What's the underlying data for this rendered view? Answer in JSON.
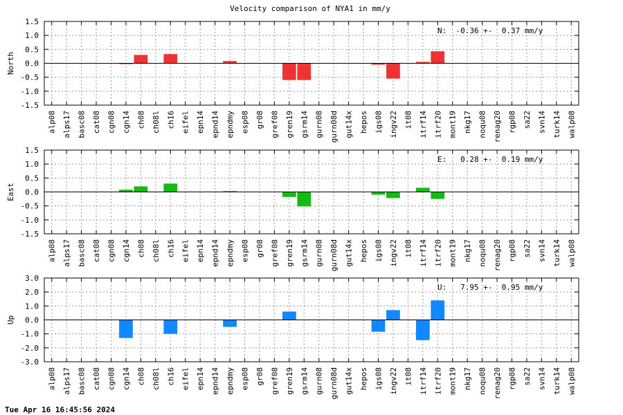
{
  "title": "Velocity comparison of NYA1 in mm/y",
  "timestamp": "Tue Apr 16 16:45:56 2024",
  "colors": {
    "north": "#ee3333",
    "east": "#11bb11",
    "up": "#1188ff",
    "grid": "#999999"
  },
  "chart_data": [
    {
      "type": "bar",
      "ylabel": "North",
      "ylim": [
        -1.5,
        1.5
      ],
      "yticks": [
        "1.5",
        "1.0",
        "0.5",
        "0.0",
        "-0.5",
        "-1.0",
        "-1.5"
      ],
      "grid": true,
      "annotation": "N:  -0.36 +-  0.37 mm/y",
      "annotation_position": "top-right",
      "categories": [
        "alp08",
        "alps17",
        "basc08",
        "cat08",
        "cgn08",
        "cgn14",
        "ch08",
        "ch08l",
        "ch16",
        "eifel",
        "epn14",
        "epnd14",
        "epndmy",
        "esp08",
        "gr08",
        "gref08",
        "gren19",
        "gsrm14",
        "gurn08",
        "gurn08d",
        "gut14x",
        "hepos",
        "igs08",
        "ingv22",
        "it08",
        "itrf14",
        "itrf20",
        "mont19",
        "nkg17",
        "noqu08",
        "renag20",
        "rgp08",
        "sa22",
        "svn14",
        "turk14",
        "walp08"
      ],
      "values": [
        0,
        0,
        0,
        0,
        0,
        -0.03,
        0.3,
        0,
        0.33,
        0,
        0,
        0,
        0.08,
        0,
        0,
        0,
        -0.6,
        -0.6,
        0,
        0,
        0,
        0,
        -0.05,
        -0.55,
        0,
        0.05,
        0.43,
        0,
        0,
        0,
        0,
        0,
        0,
        0,
        0,
        0
      ]
    },
    {
      "type": "bar",
      "ylabel": "East",
      "ylim": [
        -1.5,
        1.5
      ],
      "yticks": [
        "1.5",
        "1.0",
        "0.5",
        "0.0",
        "-0.5",
        "-1.0",
        "-1.5"
      ],
      "grid": true,
      "annotation": "E:   0.28 +-  0.19 mm/y",
      "annotation_position": "top-right",
      "categories": [
        "alp08",
        "alps17",
        "basc08",
        "cat08",
        "cgn08",
        "cgn14",
        "ch08",
        "ch08l",
        "ch16",
        "eifel",
        "epn14",
        "epnd14",
        "epndmy",
        "esp08",
        "gr08",
        "gref08",
        "gren19",
        "gsrm14",
        "gurn08",
        "gurn08d",
        "gut14x",
        "hepos",
        "igs08",
        "ingv22",
        "it08",
        "itrf14",
        "itrf20",
        "mont19",
        "nkg17",
        "noqu08",
        "renag20",
        "rgp08",
        "sa22",
        "svn14",
        "turk14",
        "walp08"
      ],
      "values": [
        0,
        0,
        0,
        0,
        0,
        0.08,
        0.2,
        0,
        0.3,
        0,
        0,
        0,
        0.03,
        0,
        0,
        0,
        -0.18,
        -0.52,
        0,
        0,
        0,
        0,
        -0.1,
        -0.22,
        0,
        0.15,
        -0.25,
        0,
        0,
        0,
        0,
        0,
        0,
        0,
        0,
        0
      ]
    },
    {
      "type": "bar",
      "ylabel": "Up",
      "ylim": [
        -3.0,
        3.0
      ],
      "yticks": [
        "3.0",
        "2.0",
        "1.0",
        "0.0",
        "-1.0",
        "-2.0",
        "-3.0"
      ],
      "grid": true,
      "annotation": "U:   7.95 +-  0.95 mm/y",
      "annotation_position": "top-right",
      "categories": [
        "alp08",
        "alps17",
        "basc08",
        "cat08",
        "cgn08",
        "cgn14",
        "ch08",
        "ch08l",
        "ch16",
        "eifel",
        "epn14",
        "epnd14",
        "epndmy",
        "esp08",
        "gr08",
        "gref08",
        "gren19",
        "gsrm14",
        "gurn08",
        "gurn08d",
        "gut14x",
        "hepos",
        "igs08",
        "ingv22",
        "it08",
        "itrf14",
        "itrf20",
        "mont19",
        "nkg17",
        "noqu08",
        "renag20",
        "rgp08",
        "sa22",
        "svn14",
        "turk14",
        "walp08"
      ],
      "values": [
        0,
        0,
        0,
        0,
        0,
        -1.3,
        0,
        0,
        -1.0,
        0,
        0,
        0,
        -0.5,
        0,
        0,
        0,
        0.6,
        0,
        0,
        0,
        0,
        0,
        -0.85,
        0.7,
        0,
        -1.45,
        1.4,
        0,
        0,
        0,
        0,
        0,
        0,
        0,
        0,
        0
      ]
    }
  ]
}
